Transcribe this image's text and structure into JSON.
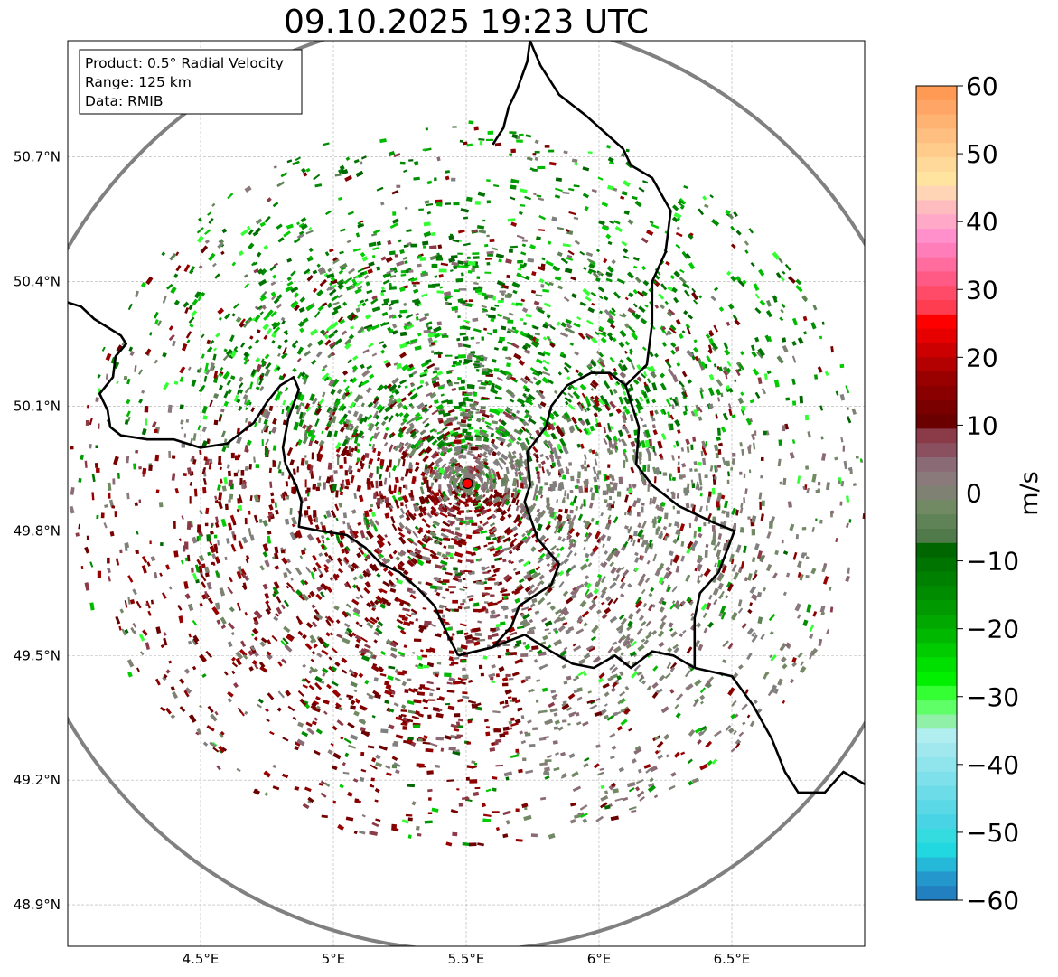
{
  "title": "09.10.2025 19:23 UTC",
  "info_box": {
    "product": "Product: 0.5° Radial Velocity",
    "range": "Range: 125 km",
    "data": "Data: RMIB"
  },
  "map": {
    "lon_range": [
      4.0,
      7.0
    ],
    "lat_range": [
      48.8,
      50.98
    ],
    "radar_site": {
      "lon": 5.505,
      "lat": 49.914
    },
    "range_km": 125,
    "x_ticks": [
      {
        "value": 4.5,
        "label": "4.5°E"
      },
      {
        "value": 5.0,
        "label": "5°E"
      },
      {
        "value": 5.5,
        "label": "5.5°E"
      },
      {
        "value": 6.0,
        "label": "6°E"
      },
      {
        "value": 6.5,
        "label": "6.5°E"
      }
    ],
    "y_ticks": [
      {
        "value": 48.9,
        "label": "48.9°N"
      },
      {
        "value": 49.2,
        "label": "49.2°N"
      },
      {
        "value": 49.5,
        "label": "49.5°N"
      },
      {
        "value": 49.8,
        "label": "49.8°N"
      },
      {
        "value": 50.1,
        "label": "50.1°N"
      },
      {
        "value": 50.4,
        "label": "50.4°N"
      },
      {
        "value": 50.7,
        "label": "50.7°N"
      }
    ],
    "borders": {
      "france_belgium": [
        [
          4.0,
          50.35
        ],
        [
          4.05,
          50.34
        ],
        [
          4.1,
          50.31
        ],
        [
          4.15,
          50.29
        ],
        [
          4.2,
          50.27
        ],
        [
          4.22,
          50.25
        ],
        [
          4.18,
          50.22
        ],
        [
          4.17,
          50.17
        ],
        [
          4.12,
          50.13
        ],
        [
          4.15,
          50.09
        ],
        [
          4.16,
          50.05
        ],
        [
          4.2,
          50.03
        ],
        [
          4.3,
          50.02
        ],
        [
          4.4,
          50.02
        ],
        [
          4.5,
          50.0
        ],
        [
          4.6,
          50.01
        ],
        [
          4.7,
          50.06
        ],
        [
          4.75,
          50.11
        ],
        [
          4.8,
          50.15
        ],
        [
          4.85,
          50.17
        ],
        [
          4.87,
          50.14
        ],
        [
          4.83,
          50.07
        ],
        [
          4.81,
          50.0
        ],
        [
          4.82,
          49.96
        ],
        [
          4.86,
          49.91
        ],
        [
          4.88,
          49.87
        ],
        [
          4.87,
          49.81
        ],
        [
          4.95,
          49.8
        ],
        [
          5.05,
          49.79
        ],
        [
          5.12,
          49.76
        ],
        [
          5.18,
          49.72
        ],
        [
          5.25,
          49.7
        ],
        [
          5.32,
          49.66
        ],
        [
          5.38,
          49.62
        ],
        [
          5.43,
          49.55
        ],
        [
          5.47,
          49.5
        ]
      ],
      "belgium_luxembourg": [
        [
          5.47,
          49.5
        ],
        [
          5.6,
          49.52
        ],
        [
          5.67,
          49.57
        ],
        [
          5.7,
          49.62
        ],
        [
          5.82,
          49.67
        ],
        [
          5.85,
          49.72
        ],
        [
          5.77,
          49.78
        ],
        [
          5.72,
          49.87
        ],
        [
          5.74,
          49.91
        ],
        [
          5.73,
          49.99
        ],
        [
          5.8,
          50.05
        ],
        [
          5.82,
          50.1
        ],
        [
          5.88,
          50.15
        ],
        [
          5.97,
          50.18
        ],
        [
          6.04,
          50.18
        ],
        [
          6.1,
          50.15
        ]
      ],
      "luxembourg_france": [
        [
          5.47,
          49.5
        ],
        [
          5.6,
          49.52
        ],
        [
          5.72,
          49.55
        ],
        [
          5.82,
          49.51
        ],
        [
          5.9,
          49.48
        ],
        [
          5.98,
          49.47
        ],
        [
          6.06,
          49.5
        ],
        [
          6.12,
          49.47
        ],
        [
          6.2,
          49.51
        ],
        [
          6.28,
          49.5
        ],
        [
          6.36,
          49.47
        ]
      ],
      "luxembourg_germany": [
        [
          6.1,
          50.15
        ],
        [
          6.15,
          50.05
        ],
        [
          6.14,
          49.96
        ],
        [
          6.2,
          49.91
        ],
        [
          6.3,
          49.86
        ],
        [
          6.43,
          49.82
        ],
        [
          6.51,
          49.8
        ],
        [
          6.45,
          49.7
        ],
        [
          6.38,
          49.65
        ],
        [
          6.36,
          49.59
        ],
        [
          6.36,
          49.47
        ]
      ],
      "france_germany": [
        [
          6.36,
          49.47
        ],
        [
          6.5,
          49.45
        ],
        [
          6.58,
          49.38
        ],
        [
          6.65,
          49.3
        ],
        [
          6.7,
          49.22
        ],
        [
          6.75,
          49.17
        ],
        [
          6.85,
          49.17
        ],
        [
          6.92,
          49.22
        ],
        [
          7.0,
          49.19
        ]
      ],
      "belgium_germany": [
        [
          6.1,
          50.15
        ],
        [
          6.18,
          50.2
        ],
        [
          6.2,
          50.3
        ],
        [
          6.2,
          50.4
        ],
        [
          6.25,
          50.47
        ],
        [
          6.27,
          50.57
        ],
        [
          6.2,
          50.65
        ],
        [
          6.12,
          50.68
        ],
        [
          6.09,
          50.72
        ],
        [
          6.02,
          50.76
        ],
        [
          5.95,
          50.8
        ],
        [
          5.85,
          50.85
        ],
        [
          5.78,
          50.92
        ],
        [
          5.74,
          50.98
        ]
      ],
      "netherlands_belgium": [
        [
          5.74,
          50.98
        ],
        [
          5.73,
          50.93
        ],
        [
          5.69,
          50.86
        ],
        [
          5.66,
          50.82
        ],
        [
          5.64,
          50.77
        ],
        [
          5.62,
          50.75
        ],
        [
          5.6,
          50.73
        ]
      ]
    }
  },
  "colorbar": {
    "label": "m/s",
    "min": -60,
    "max": 60,
    "ticks": [
      {
        "value": 60,
        "label": "60"
      },
      {
        "value": 50,
        "label": "50"
      },
      {
        "value": 40,
        "label": "40"
      },
      {
        "value": 30,
        "label": "30"
      },
      {
        "value": 20,
        "label": "20"
      },
      {
        "value": 10,
        "label": "10"
      },
      {
        "value": 0,
        "label": "0"
      },
      {
        "value": -10,
        "label": "−10"
      },
      {
        "value": -20,
        "label": "−20"
      },
      {
        "value": -30,
        "label": "−30"
      },
      {
        "value": -40,
        "label": "−40"
      },
      {
        "value": -50,
        "label": "−50"
      },
      {
        "value": -60,
        "label": "−60"
      }
    ],
    "colors": [
      "#ff9a55",
      "#ffa565",
      "#ffb373",
      "#ffbf80",
      "#ffcc8c",
      "#ffd99a",
      "#ffe4a0",
      "#ffd5b5",
      "#ffbcbf",
      "#ffa8c8",
      "#ff90cc",
      "#ff7eb9",
      "#ff6c9d",
      "#ff5a85",
      "#ff4b68",
      "#ff3d50",
      "#ff0000",
      "#e60000",
      "#cc0000",
      "#b30000",
      "#990000",
      "#8a0000",
      "#7a0000",
      "#6b0000",
      "#8b3a48",
      "#8b5060",
      "#8a6a74",
      "#8a7a7c",
      "#7f8272",
      "#718a64",
      "#5f8256",
      "#507a4a",
      "#006600",
      "#007400",
      "#008000",
      "#008c00",
      "#009900",
      "#00a800",
      "#00b800",
      "#00cc00",
      "#00e000",
      "#00f000",
      "#33ff33",
      "#5fff68",
      "#90f0a8",
      "#b0eef0",
      "#a0e8ee",
      "#90e4ec",
      "#7ee0ea",
      "#6cdce8",
      "#5ad8e6",
      "#48d4e4",
      "#34dce0",
      "#22d8e0",
      "#25b8d8",
      "#2498cc",
      "#2280c0"
    ]
  },
  "legend_colors": {
    "axis_frame": "#000000",
    "range_ring": "#808080",
    "grid": "#b0b0b0",
    "radar_marker": "#ff0000"
  }
}
